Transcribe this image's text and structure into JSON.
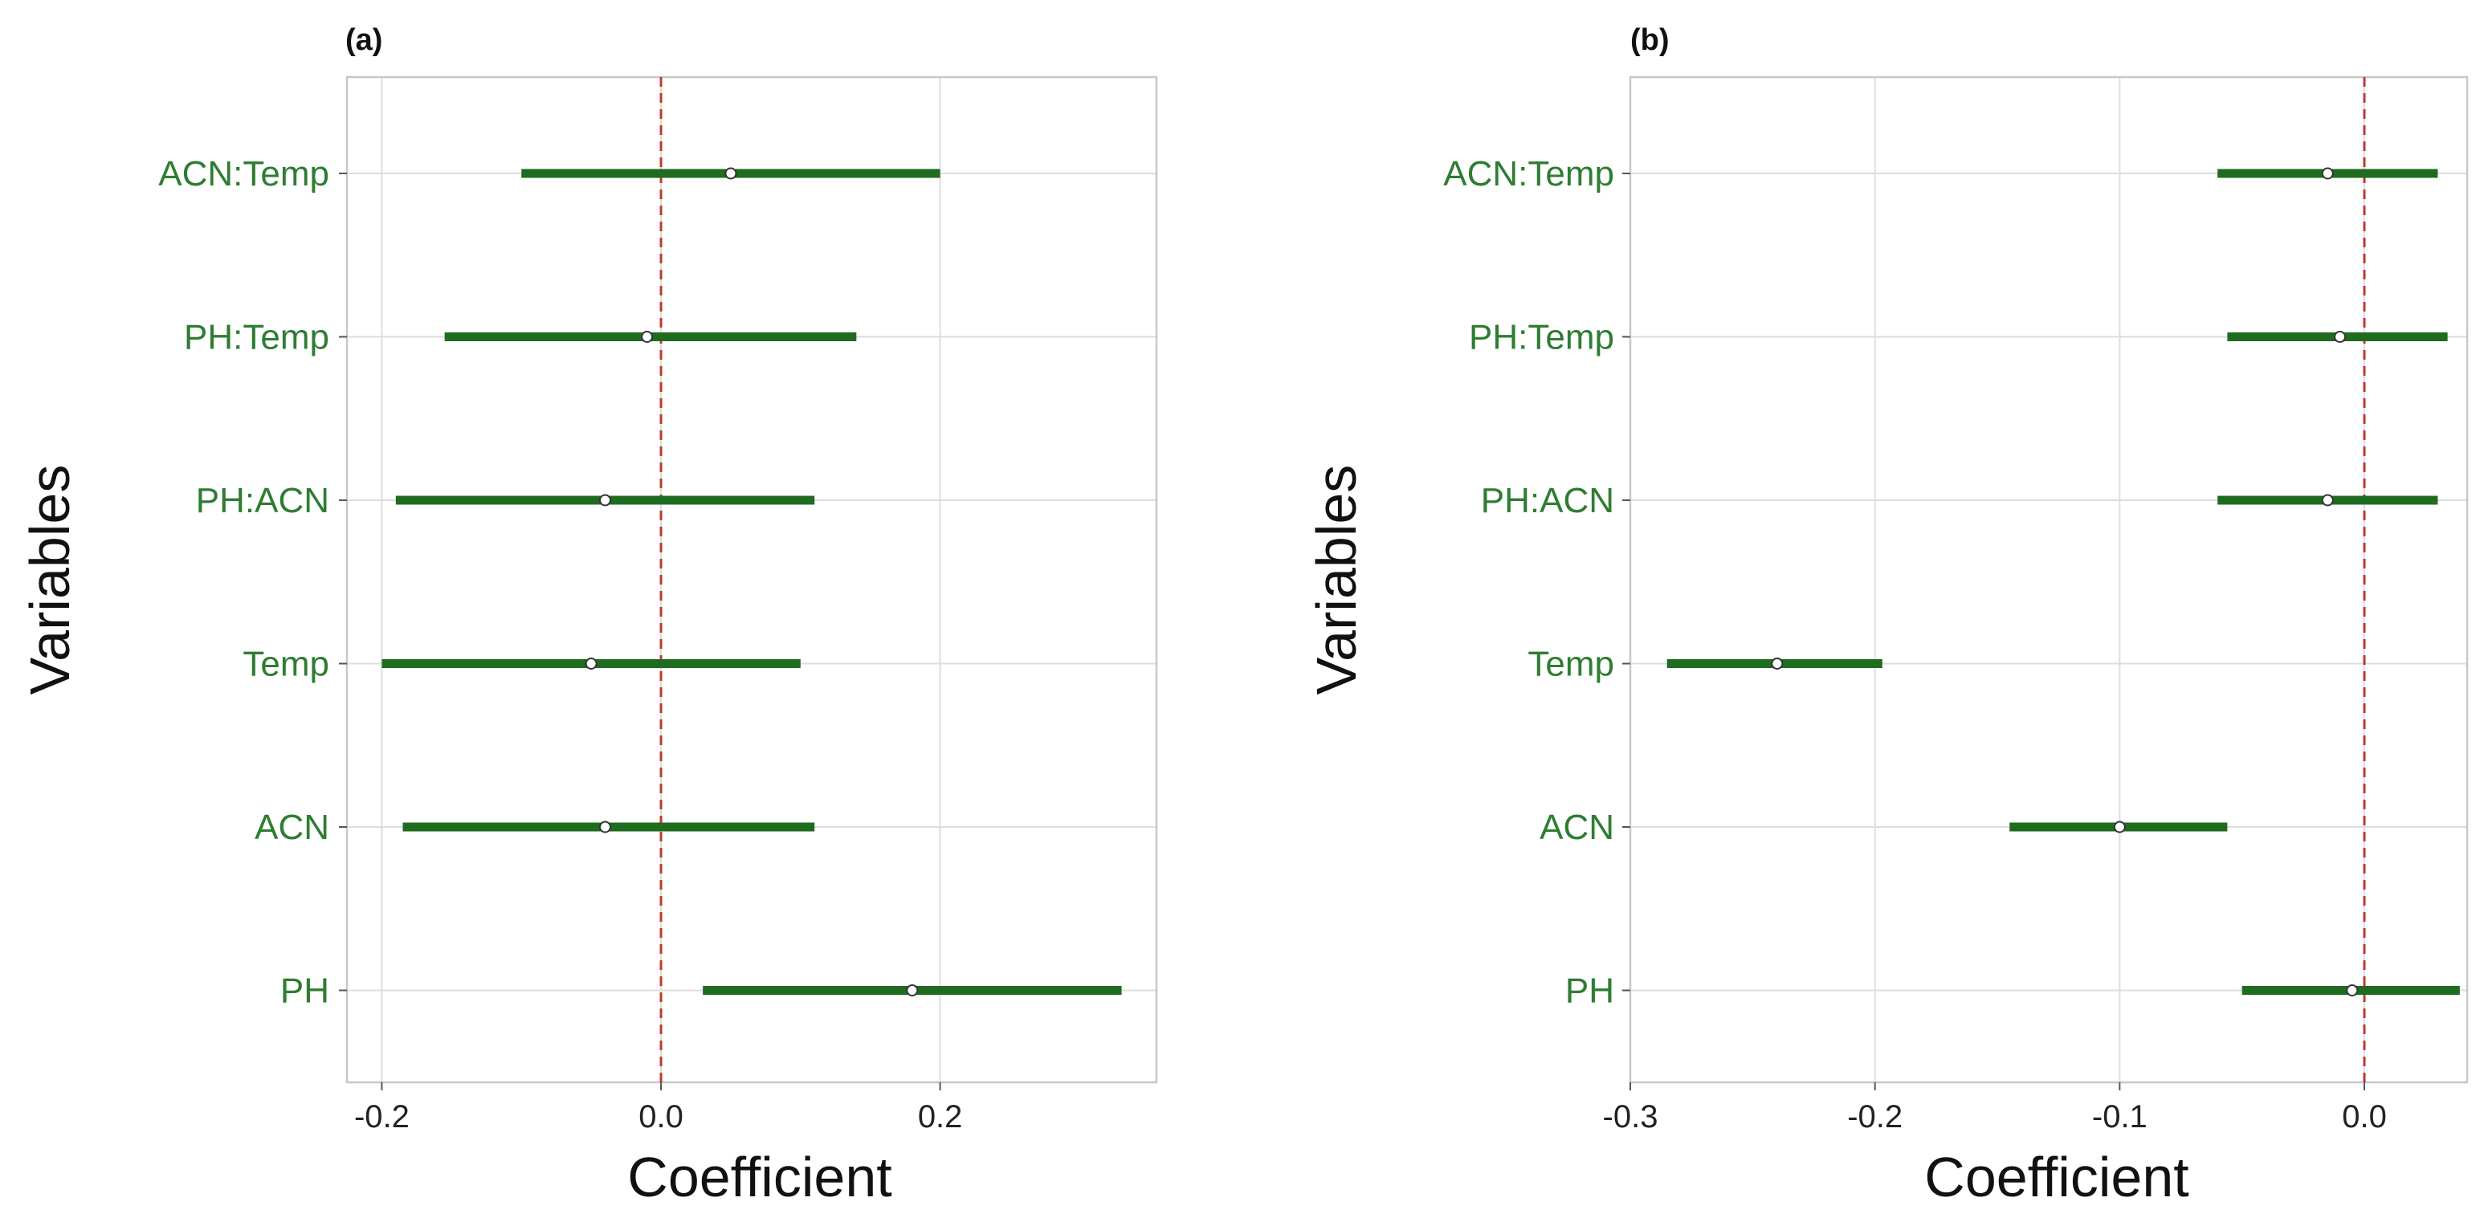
{
  "chart_data": [
    {
      "panel": "(a)",
      "type": "coefficient-plot",
      "xlabel": "Coefficient",
      "ylabel": "Variables",
      "xlim": [
        -0.225,
        0.355
      ],
      "xticks": [
        -0.2,
        0.0,
        0.2
      ],
      "xtick_labels": [
        "-0.2",
        "0.0",
        "0.2"
      ],
      "reference_line": 0.0,
      "categories": [
        "ACN:Temp",
        "PH:Temp",
        "PH:ACN",
        "Temp",
        "ACN",
        "PH"
      ],
      "estimates": [
        0.05,
        -0.01,
        -0.04,
        -0.05,
        -0.04,
        0.18
      ],
      "lower": [
        -0.1,
        -0.155,
        -0.19,
        -0.2,
        -0.185,
        0.03
      ],
      "upper": [
        0.2,
        0.14,
        0.11,
        0.1,
        0.11,
        0.33
      ]
    },
    {
      "panel": "(b)",
      "type": "coefficient-plot",
      "xlabel": "Coefficient",
      "ylabel": "Variables",
      "xlim": [
        -0.3,
        0.042
      ],
      "xticks": [
        -0.3,
        -0.2,
        -0.1,
        0.0
      ],
      "xtick_labels": [
        "-0.3",
        "-0.2",
        "-0.1",
        "0.0"
      ],
      "reference_line": 0.0,
      "categories": [
        "ACN:Temp",
        "PH:Temp",
        "PH:ACN",
        "Temp",
        "ACN",
        "PH"
      ],
      "estimates": [
        -0.015,
        -0.01,
        -0.015,
        -0.24,
        -0.1,
        -0.005
      ],
      "lower": [
        -0.06,
        -0.056,
        -0.06,
        -0.285,
        -0.145,
        -0.05
      ],
      "upper": [
        0.03,
        0.034,
        0.03,
        -0.197,
        -0.056,
        0.039
      ]
    }
  ],
  "colors": {
    "interval": "#1f6b1f",
    "tick_label": "#2e7d32",
    "reference_line": "#c0392b",
    "grid": "#dddddd",
    "frame": "#c8c8c8"
  }
}
